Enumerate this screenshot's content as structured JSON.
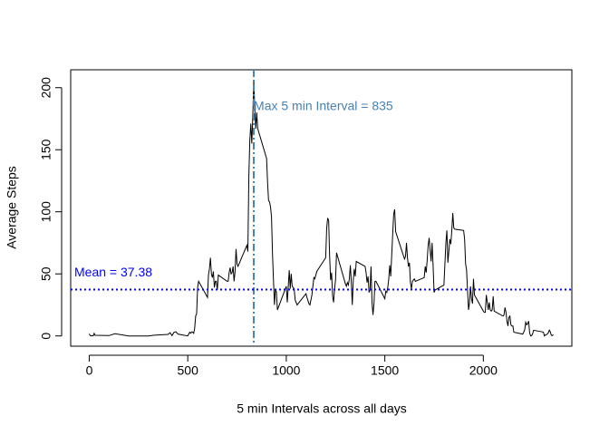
{
  "chart_data": {
    "type": "line",
    "xlabel": "5 min Intervals across all days",
    "ylabel": "Average Steps",
    "color": "#000000",
    "x": [
      0,
      5,
      10,
      15,
      20,
      25,
      30,
      100,
      130,
      200,
      300,
      330,
      400,
      410,
      420,
      430,
      440,
      450,
      500,
      505,
      510,
      515,
      520,
      525,
      530,
      535,
      540,
      545,
      550,
      555,
      600,
      605,
      610,
      615,
      620,
      625,
      630,
      635,
      640,
      645,
      650,
      655,
      700,
      705,
      710,
      715,
      720,
      725,
      730,
      735,
      740,
      745,
      750,
      755,
      800,
      805,
      810,
      815,
      820,
      825,
      830,
      835,
      840,
      845,
      850,
      855,
      900,
      905,
      910,
      915,
      920,
      925,
      930,
      935,
      940,
      945,
      950,
      955,
      1000,
      1005,
      1010,
      1015,
      1020,
      1025,
      1030,
      1040,
      1045,
      1055,
      1100,
      1105,
      1115,
      1120,
      1130,
      1140,
      1145,
      1155,
      1200,
      1205,
      1210,
      1215,
      1220,
      1225,
      1230,
      1235,
      1240,
      1245,
      1250,
      1255,
      1300,
      1305,
      1310,
      1315,
      1320,
      1325,
      1330,
      1335,
      1340,
      1345,
      1350,
      1355,
      1400,
      1405,
      1410,
      1415,
      1420,
      1425,
      1430,
      1435,
      1440,
      1445,
      1450,
      1455,
      1500,
      1505,
      1510,
      1515,
      1520,
      1525,
      1530,
      1535,
      1540,
      1545,
      1550,
      1555,
      1600,
      1605,
      1610,
      1615,
      1620,
      1625,
      1630,
      1635,
      1640,
      1645,
      1650,
      1655,
      1700,
      1705,
      1710,
      1715,
      1720,
      1725,
      1730,
      1735,
      1740,
      1745,
      1750,
      1755,
      1800,
      1805,
      1810,
      1815,
      1820,
      1825,
      1830,
      1835,
      1840,
      1845,
      1850,
      1855,
      1900,
      1905,
      1910,
      1915,
      1920,
      1925,
      1930,
      1935,
      1940,
      1945,
      1950,
      1955,
      2000,
      2005,
      2010,
      2015,
      2020,
      2025,
      2030,
      2035,
      2040,
      2045,
      2050,
      2055,
      2100,
      2105,
      2110,
      2115,
      2120,
      2125,
      2130,
      2135,
      2140,
      2145,
      2150,
      2155,
      2200,
      2205,
      2210,
      2215,
      2220,
      2225,
      2230,
      2235,
      2240,
      2245,
      2250,
      2255,
      2300,
      2305,
      2310,
      2315,
      2320,
      2325,
      2330,
      2335,
      2340,
      2345,
      2350,
      2355
    ],
    "values": [
      1.7,
      0.3,
      0.1,
      0.2,
      0.1,
      2.1,
      0.5,
      0.3,
      1.8,
      0,
      0,
      0.6,
      1.2,
      2.6,
      0.3,
      2.9,
      3.4,
      1.5,
      0,
      1.6,
      3,
      2.2,
      3.3,
      3,
      2.1,
      6.1,
      16,
      18,
      39,
      44,
      31,
      49,
      54,
      63,
      50,
      47,
      52,
      39,
      44,
      44,
      37,
      49,
      44,
      44,
      51,
      55,
      50,
      51,
      56,
      44,
      52,
      70,
      58,
      56,
      73,
      68,
      129,
      158,
      171,
      155,
      177,
      206,
      183,
      167,
      180,
      167,
      143,
      124,
      109,
      108,
      104,
      96,
      66,
      45,
      25,
      38,
      35,
      21,
      40,
      27,
      40,
      53,
      38,
      50,
      40,
      38,
      29,
      25,
      34,
      31,
      26,
      25,
      33,
      47,
      46,
      52,
      63,
      87,
      95,
      93,
      64,
      45,
      51,
      32,
      27,
      38,
      45,
      67,
      42,
      40,
      43,
      41,
      46,
      57,
      43,
      25,
      45,
      54,
      48,
      60,
      56,
      51,
      43,
      48,
      35,
      37,
      56,
      27,
      17,
      26,
      44,
      44,
      30,
      36,
      35,
      39,
      46,
      57,
      48,
      65,
      82,
      98,
      102,
      84,
      62,
      64,
      75,
      63,
      56,
      59,
      43,
      38,
      44,
      45,
      46,
      44,
      47,
      56,
      51,
      61,
      73,
      79,
      69,
      60,
      75,
      57,
      35,
      37,
      41,
      58,
      75,
      85,
      59,
      68,
      78,
      74,
      85,
      99,
      87,
      86,
      85,
      78,
      58,
      53,
      36,
      21,
      27,
      40,
      30,
      26,
      46,
      33,
      20,
      19,
      19,
      33,
      27,
      21,
      27,
      21,
      20,
      21,
      32,
      20,
      16,
      17,
      23,
      19,
      12,
      8,
      15,
      16,
      9,
      8,
      8,
      3,
      1.5,
      3,
      5,
      11,
      9,
      10,
      12,
      2.5,
      0,
      0.3,
      1.6,
      4.6,
      3.3,
      3,
      0,
      0.8,
      1,
      1.6,
      2.6,
      4.7,
      3.3,
      0.6,
      0.2,
      1.1
    ],
    "xlim": [
      -94.2,
      2449.2
    ],
    "ylim": [
      -8.25,
      214.4
    ],
    "xticks": [
      0,
      500,
      1000,
      1500,
      2000
    ],
    "yticks": [
      0,
      50,
      100,
      150,
      200
    ],
    "reference_lines": [
      {
        "axis": "x",
        "value": 835,
        "color": "#4682b4",
        "style": "dashdot"
      },
      {
        "axis": "y",
        "value": 37.3826,
        "color": "#0000ff",
        "style": "dotted"
      }
    ],
    "annotations": [
      {
        "text": "Max 5 min Interval = 835",
        "color": "#4682b4"
      },
      {
        "text": "Mean = 37.38",
        "color": "#0000ff"
      }
    ]
  }
}
